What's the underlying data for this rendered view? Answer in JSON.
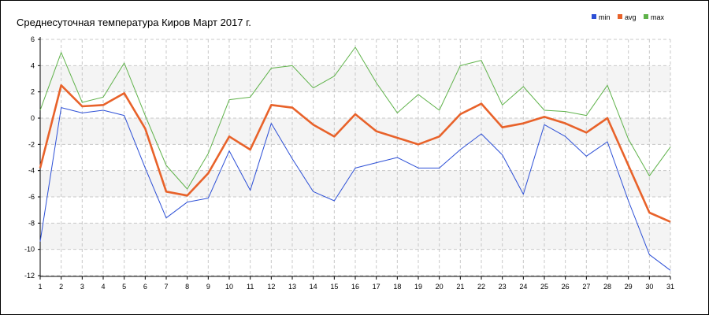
{
  "chart_data": {
    "type": "line",
    "title": "Среднесуточная температура Киров  Март 2017 г.",
    "xlabel": "",
    "ylabel": "",
    "x": [
      1,
      2,
      3,
      4,
      5,
      6,
      7,
      8,
      9,
      10,
      11,
      12,
      13,
      14,
      15,
      16,
      17,
      18,
      19,
      20,
      21,
      22,
      23,
      24,
      25,
      26,
      27,
      28,
      29,
      30,
      31
    ],
    "xlim": [
      1,
      31
    ],
    "ylim": [
      -12,
      6
    ],
    "y_ticks": [
      6,
      4,
      2,
      0,
      -2,
      -4,
      -6,
      -8,
      -10,
      -12
    ],
    "grid": true,
    "legend_position": "top-right",
    "series": [
      {
        "name": "min",
        "color": "#2c4fd6",
        "values": [
          -9.4,
          0.8,
          0.4,
          0.6,
          0.2,
          -3.8,
          -7.6,
          -6.4,
          -6.1,
          -2.5,
          -5.5,
          -0.4,
          -3.1,
          -5.6,
          -6.3,
          -3.8,
          -3.4,
          -3.0,
          -3.8,
          -3.8,
          -2.4,
          -1.2,
          -2.8,
          -5.8,
          -0.5,
          -1.4,
          -2.9,
          -1.8,
          -6.3,
          -10.4,
          -11.6
        ]
      },
      {
        "name": "avg",
        "color": "#e8622a",
        "values": [
          -3.8,
          2.5,
          0.9,
          1.0,
          1.9,
          -0.8,
          -5.6,
          -5.9,
          -4.2,
          -1.4,
          -2.4,
          1.0,
          0.8,
          -0.5,
          -1.4,
          0.3,
          -1.0,
          -1.5,
          -2.0,
          -1.4,
          0.3,
          1.1,
          -0.7,
          -0.4,
          0.1,
          -0.4,
          -1.1,
          0.0,
          -3.6,
          -7.2,
          -7.9
        ]
      },
      {
        "name": "max",
        "color": "#5fb24a",
        "values": [
          0.6,
          5.0,
          1.2,
          1.6,
          4.2,
          0.2,
          -3.6,
          -5.4,
          -2.7,
          1.4,
          1.6,
          3.8,
          4.0,
          2.3,
          3.2,
          5.4,
          2.7,
          0.4,
          1.8,
          0.6,
          4.0,
          4.4,
          1.0,
          2.4,
          0.6,
          0.5,
          0.2,
          2.5,
          -1.6,
          -4.4,
          -2.2
        ]
      }
    ]
  }
}
